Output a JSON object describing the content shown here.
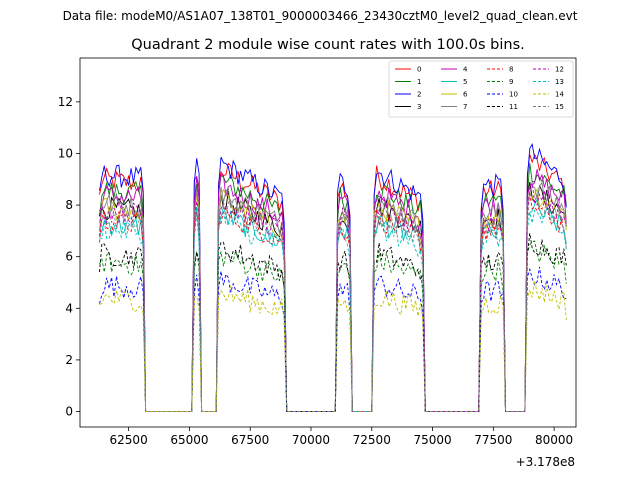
{
  "figure": {
    "suptitle": "Data file: modeM0/AS1A07_138T01_9000003466_23430cztM0_level2_quad_clean.evt",
    "title": "Quadrant 2 module wise count rates with 100.0s bins.",
    "x_offset_label": "+3.178e8"
  },
  "chart_data": {
    "type": "line",
    "title": "Quadrant 2 module wise count rates with 100.0s bins.",
    "xlabel": "",
    "ylabel": "",
    "x_offset": 317800000,
    "xlim": [
      60500,
      80900
    ],
    "ylim": [
      -0.6,
      13.7
    ],
    "xticks": [
      62500,
      65000,
      67500,
      70000,
      72500,
      75000,
      77500,
      80000
    ],
    "xtick_labels": [
      "62500",
      "65000",
      "67500",
      "70000",
      "72500",
      "75000",
      "77500",
      "80000"
    ],
    "yticks": [
      0,
      2,
      4,
      6,
      8,
      10,
      12
    ],
    "ytick_labels": [
      "0",
      "2",
      "4",
      "6",
      "8",
      "10",
      "12"
    ],
    "bin_size_s": 100,
    "legend_position": "top-right",
    "segments": [
      {
        "start": 61300,
        "end": 63100,
        "scale": 1.0,
        "trend": -0.02
      },
      {
        "start": 65200,
        "end": 65450,
        "scale": 1.05,
        "trend": 0.0
      },
      {
        "start": 66200,
        "end": 68900,
        "scale": 1.05,
        "trend": -0.15
      },
      {
        "start": 71100,
        "end": 71600,
        "scale": 0.98,
        "trend": -0.05
      },
      {
        "start": 72600,
        "end": 74600,
        "scale": 1.02,
        "trend": -0.12
      },
      {
        "start": 77000,
        "end": 77900,
        "scale": 0.95,
        "trend": 0.0
      },
      {
        "start": 78900,
        "end": 80500,
        "scale": 1.1,
        "trend": -0.12
      }
    ],
    "series": [
      {
        "name": "0",
        "color": "#ff0000",
        "dash": "solid",
        "level": 9.0
      },
      {
        "name": "1",
        "color": "#008000",
        "dash": "solid",
        "level": 8.6
      },
      {
        "name": "2",
        "color": "#0000ff",
        "dash": "solid",
        "level": 9.2
      },
      {
        "name": "3",
        "color": "#000000",
        "dash": "solid",
        "level": 7.9
      },
      {
        "name": "4",
        "color": "#bf00bf",
        "dash": "solid",
        "level": 8.4
      },
      {
        "name": "5",
        "color": "#00bfbf",
        "dash": "solid",
        "level": 7.3
      },
      {
        "name": "6",
        "color": "#bfbf00",
        "dash": "solid",
        "level": 7.9
      },
      {
        "name": "7",
        "color": "#808080",
        "dash": "solid",
        "level": 8.1
      },
      {
        "name": "8",
        "color": "#ff0000",
        "dash": "dashed",
        "level": 7.4
      },
      {
        "name": "9",
        "color": "#008000",
        "dash": "dashed",
        "level": 5.8
      },
      {
        "name": "10",
        "color": "#0000ff",
        "dash": "dashed",
        "level": 4.9
      },
      {
        "name": "11",
        "color": "#000000",
        "dash": "dashed",
        "level": 6.1
      },
      {
        "name": "12",
        "color": "#bf00bf",
        "dash": "dashed",
        "level": 7.8
      },
      {
        "name": "13",
        "color": "#00bfbf",
        "dash": "dashed",
        "level": 7.1
      },
      {
        "name": "14",
        "color": "#bfbf00",
        "dash": "dashed",
        "level": 4.4
      },
      {
        "name": "15",
        "color": "#808080",
        "dash": "dashed",
        "level": 7.6
      }
    ]
  }
}
